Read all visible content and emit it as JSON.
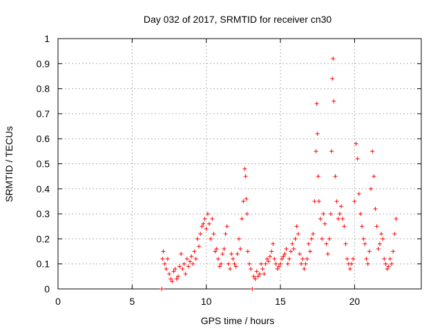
{
  "chart_data": {
    "type": "scatter",
    "title": "Day 032 of 2017, SRMTID for receiver cn30",
    "xlabel": "GPS time / hours",
    "ylabel": "SRMTID / TECUs",
    "xlim": [
      0,
      24.5
    ],
    "ylim": [
      0,
      1
    ],
    "xticks": [
      0,
      5,
      10,
      15,
      20
    ],
    "xtick_labels": [
      "0",
      "5",
      "10",
      "15",
      "20"
    ],
    "yticks": [
      0,
      0.1,
      0.2,
      0.3,
      0.4,
      0.5,
      0.6,
      0.7,
      0.8,
      0.9,
      1
    ],
    "ytick_labels": [
      "0",
      "0.1",
      "0.2",
      "0.3",
      "0.4",
      "0.5",
      "0.6",
      "0.7",
      "0.8",
      "0.9",
      "1"
    ],
    "grid": true,
    "marker": "+",
    "marker_color": "#ff0000",
    "series": [
      {
        "x": [
          7.0,
          7.05,
          7.1,
          7.2,
          7.3,
          7.4,
          7.5,
          7.6,
          7.7,
          7.8,
          7.9,
          8.0,
          8.1,
          8.2,
          8.3,
          8.4,
          8.5,
          8.6,
          8.7,
          8.8,
          8.9,
          9.0,
          9.1,
          9.2,
          9.3,
          9.4,
          9.5,
          9.6,
          9.7,
          9.8,
          9.9,
          10.0,
          10.1,
          10.2,
          10.3,
          10.4,
          10.5,
          10.6,
          10.7,
          10.8,
          10.9,
          11.0,
          11.1,
          11.2,
          11.3,
          11.4,
          11.5,
          11.6,
          11.7,
          11.8,
          11.9,
          12.0,
          12.1,
          12.2,
          12.3,
          12.4,
          12.5,
          12.6,
          12.65,
          12.7,
          12.75,
          12.8,
          12.9,
          13.0,
          13.1,
          13.2,
          13.3,
          13.4,
          13.5,
          13.6,
          13.7,
          13.8,
          13.9,
          14.0,
          14.1,
          14.2,
          14.3,
          14.4,
          14.5,
          14.6,
          14.7,
          14.8,
          14.9,
          15.0,
          15.1,
          15.2,
          15.3,
          15.4,
          15.5,
          15.6,
          15.7,
          15.8,
          15.9,
          16.0,
          16.1,
          16.2,
          16.3,
          16.4,
          16.5,
          16.6,
          16.7,
          16.8,
          16.9,
          17.0,
          17.1,
          17.2,
          17.3,
          17.4,
          17.45,
          17.5,
          17.55,
          17.6,
          17.7,
          17.8,
          17.9,
          18.0,
          18.1,
          18.2,
          18.3,
          18.4,
          18.45,
          18.5,
          18.55,
          18.6,
          18.7,
          18.8,
          18.9,
          19.0,
          19.1,
          19.2,
          19.3,
          19.4,
          19.5,
          19.6,
          19.7,
          19.8,
          19.9,
          20.0,
          20.1,
          20.2,
          20.3,
          20.4,
          20.5,
          20.6,
          20.7,
          20.8,
          20.9,
          21.0,
          21.1,
          21.2,
          21.3,
          21.4,
          21.5,
          21.6,
          21.7,
          21.8,
          21.9,
          22.0,
          22.1,
          22.2,
          22.3,
          22.4,
          22.5,
          22.6,
          22.7,
          22.8
        ],
        "y": [
          0.0,
          0.12,
          0.15,
          0.1,
          0.08,
          0.12,
          0.06,
          0.04,
          0.03,
          0.07,
          0.08,
          0.04,
          0.05,
          0.09,
          0.14,
          0.08,
          0.1,
          0.06,
          0.12,
          0.09,
          0.11,
          0.13,
          0.1,
          0.15,
          0.12,
          0.2,
          0.17,
          0.22,
          0.25,
          0.26,
          0.28,
          0.24,
          0.3,
          0.26,
          0.2,
          0.28,
          0.22,
          0.15,
          0.16,
          0.12,
          0.09,
          0.1,
          0.14,
          0.16,
          0.22,
          0.25,
          0.1,
          0.08,
          0.14,
          0.12,
          0.1,
          0.09,
          0.14,
          0.2,
          0.16,
          0.28,
          0.35,
          0.48,
          0.45,
          0.36,
          0.3,
          0.15,
          0.1,
          0.08,
          0.0,
          0.05,
          0.04,
          0.07,
          0.05,
          0.06,
          0.1,
          0.08,
          0.06,
          0.1,
          0.12,
          0.11,
          0.13,
          0.15,
          0.18,
          0.12,
          0.1,
          0.08,
          0.09,
          0.1,
          0.12,
          0.13,
          0.14,
          0.16,
          0.1,
          0.12,
          0.15,
          0.18,
          0.16,
          0.2,
          0.25,
          0.22,
          0.14,
          0.1,
          0.12,
          0.08,
          0.1,
          0.12,
          0.18,
          0.15,
          0.2,
          0.22,
          0.35,
          0.55,
          0.74,
          0.62,
          0.45,
          0.35,
          0.28,
          0.2,
          0.3,
          0.26,
          0.18,
          0.14,
          0.2,
          0.3,
          0.55,
          0.84,
          0.92,
          0.75,
          0.45,
          0.35,
          0.28,
          0.3,
          0.33,
          0.28,
          0.25,
          0.18,
          0.12,
          0.1,
          0.08,
          0.1,
          0.12,
          0.35,
          0.58,
          0.52,
          0.38,
          0.3,
          0.25,
          0.2,
          0.18,
          0.12,
          0.1,
          0.15,
          0.4,
          0.55,
          0.45,
          0.32,
          0.25,
          0.16,
          0.18,
          0.22,
          0.2,
          0.12,
          0.1,
          0.08,
          0.09,
          0.12,
          0.1,
          0.15,
          0.22,
          0.28
        ]
      }
    ]
  }
}
